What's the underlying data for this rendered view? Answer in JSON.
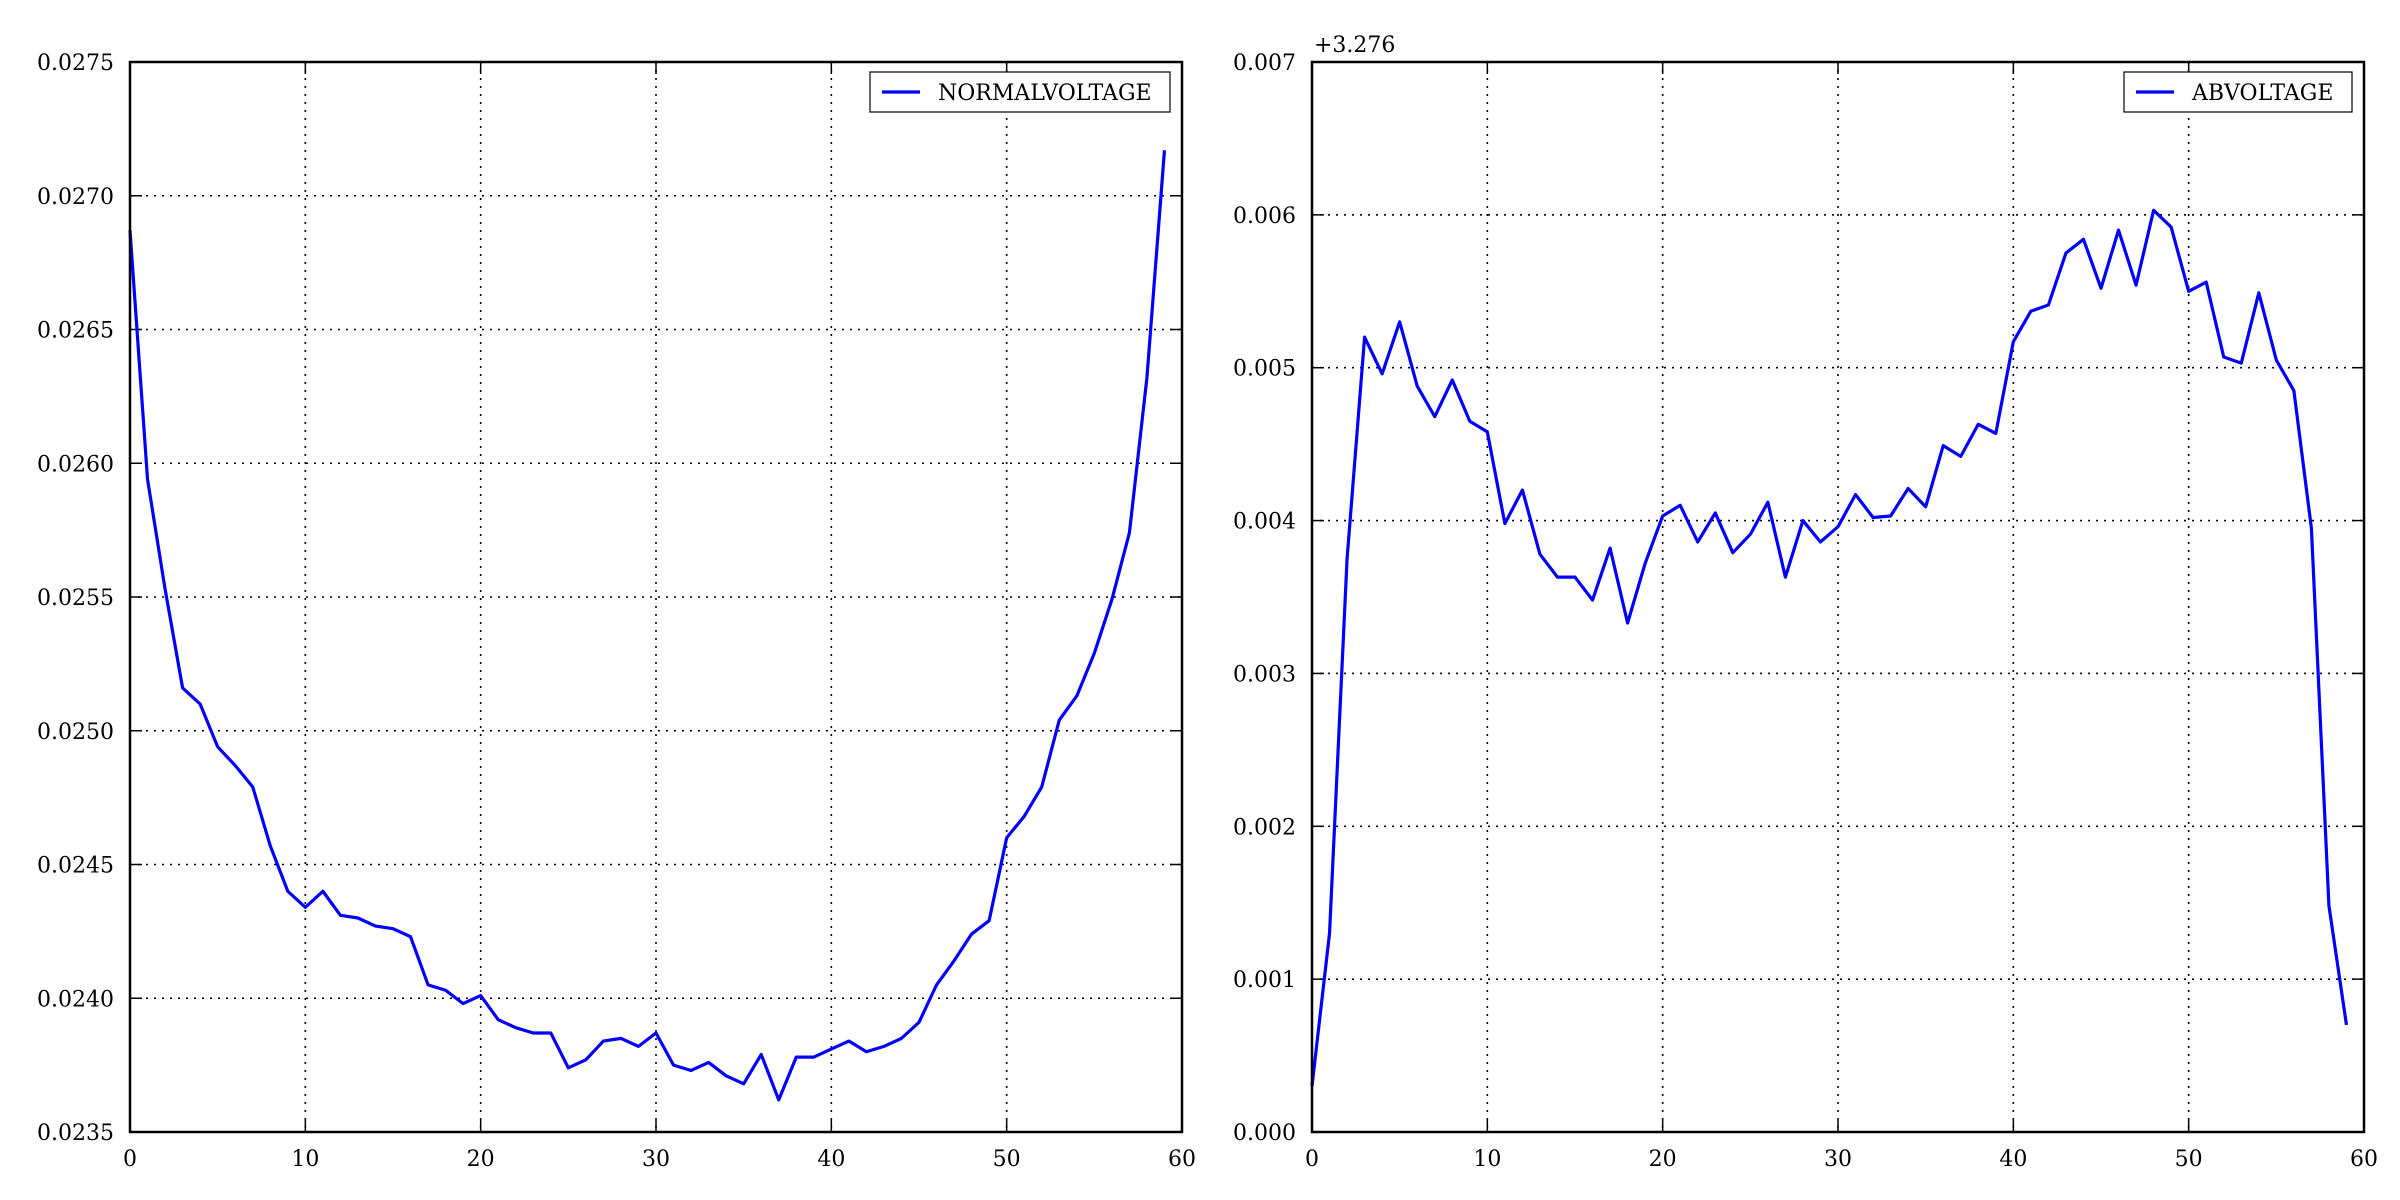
{
  "chart_data": [
    {
      "type": "line",
      "title": "",
      "xlabel": "",
      "ylabel": "",
      "xlim": [
        0,
        60
      ],
      "ylim": [
        0.0235,
        0.0275
      ],
      "grid": true,
      "legend_position": "top-right",
      "x_ticks": [
        0,
        10,
        20,
        30,
        40,
        50,
        60
      ],
      "x_tick_labels": [
        "0",
        "10",
        "20",
        "30",
        "40",
        "50",
        "60"
      ],
      "y_ticks": [
        0.0235,
        0.024,
        0.0245,
        0.025,
        0.0255,
        0.026,
        0.0265,
        0.027,
        0.0275
      ],
      "y_tick_labels": [
        "0.0235",
        "0.0240",
        "0.0245",
        "0.0250",
        "0.0255",
        "0.0260",
        "0.0265",
        "0.0270",
        "0.0275"
      ],
      "offset_label": "",
      "series": [
        {
          "name": "NORMALVOLTAGE",
          "color": "#0000ff",
          "x": [
            0,
            1,
            2,
            3,
            4,
            5,
            6,
            7,
            8,
            9,
            10,
            11,
            12,
            13,
            14,
            15,
            16,
            17,
            18,
            19,
            20,
            21,
            22,
            23,
            24,
            25,
            26,
            27,
            28,
            29,
            30,
            31,
            32,
            33,
            34,
            35,
            36,
            37,
            38,
            39,
            40,
            41,
            42,
            43,
            44,
            45,
            46,
            47,
            48,
            49,
            50,
            51,
            52,
            53,
            54,
            55,
            56,
            57,
            58,
            59
          ],
          "values": [
            0.02687,
            0.02594,
            0.02553,
            0.02516,
            0.0251,
            0.02494,
            0.02487,
            0.02479,
            0.02457,
            0.0244,
            0.02434,
            0.0244,
            0.02431,
            0.0243,
            0.02427,
            0.02426,
            0.02423,
            0.02405,
            0.02403,
            0.02398,
            0.02401,
            0.02392,
            0.02389,
            0.02387,
            0.02387,
            0.02374,
            0.02377,
            0.02384,
            0.02385,
            0.02382,
            0.02387,
            0.02375,
            0.02373,
            0.02376,
            0.02371,
            0.02368,
            0.02379,
            0.02362,
            0.02378,
            0.02378,
            0.02381,
            0.02384,
            0.0238,
            0.02382,
            0.02385,
            0.02391,
            0.02405,
            0.02414,
            0.02424,
            0.02429,
            0.0246,
            0.02468,
            0.02479,
            0.02504,
            0.02513,
            0.02529,
            0.02549,
            0.02574,
            0.02632,
            0.02717
          ]
        }
      ]
    },
    {
      "type": "line",
      "title": "",
      "xlabel": "",
      "ylabel": "",
      "xlim": [
        0,
        60
      ],
      "ylim": [
        0.0,
        0.007
      ],
      "grid": true,
      "legend_position": "top-right",
      "x_ticks": [
        0,
        10,
        20,
        30,
        40,
        50,
        60
      ],
      "x_tick_labels": [
        "0",
        "10",
        "20",
        "30",
        "40",
        "50",
        "60"
      ],
      "y_ticks": [
        0.0,
        0.001,
        0.002,
        0.003,
        0.004,
        0.005,
        0.006,
        0.007
      ],
      "y_tick_labels": [
        "0.000",
        "0.001",
        "0.002",
        "0.003",
        "0.004",
        "0.005",
        "0.006",
        "0.007"
      ],
      "offset_label": "+3.276",
      "series": [
        {
          "name": "ABVOLTAGE",
          "color": "#0000ff",
          "x": [
            0,
            1,
            2,
            3,
            4,
            5,
            6,
            7,
            8,
            9,
            10,
            11,
            12,
            13,
            14,
            15,
            16,
            17,
            18,
            19,
            20,
            21,
            22,
            23,
            24,
            25,
            26,
            27,
            28,
            29,
            30,
            31,
            32,
            33,
            34,
            35,
            36,
            37,
            38,
            39,
            40,
            41,
            42,
            43,
            44,
            45,
            46,
            47,
            48,
            49,
            50,
            51,
            52,
            53,
            54,
            55,
            56,
            57,
            58,
            59
          ],
          "values": [
            0.0003,
            0.0013,
            0.00375,
            0.0052,
            0.00496,
            0.0053,
            0.00488,
            0.00468,
            0.00492,
            0.00465,
            0.00458,
            0.00398,
            0.0042,
            0.00378,
            0.00363,
            0.00363,
            0.00348,
            0.00382,
            0.00333,
            0.00372,
            0.00403,
            0.0041,
            0.00386,
            0.00405,
            0.00379,
            0.00391,
            0.00412,
            0.00363,
            0.004,
            0.00386,
            0.00396,
            0.00417,
            0.00402,
            0.00403,
            0.00421,
            0.00409,
            0.00449,
            0.00442,
            0.00463,
            0.00457,
            0.00517,
            0.00537,
            0.00541,
            0.00575,
            0.00584,
            0.00552,
            0.0059,
            0.00554,
            0.00603,
            0.00592,
            0.0055,
            0.00556,
            0.00507,
            0.00503,
            0.00549,
            0.00505,
            0.00485,
            0.00395,
            0.00148,
            0.0007
          ]
        }
      ]
    }
  ]
}
